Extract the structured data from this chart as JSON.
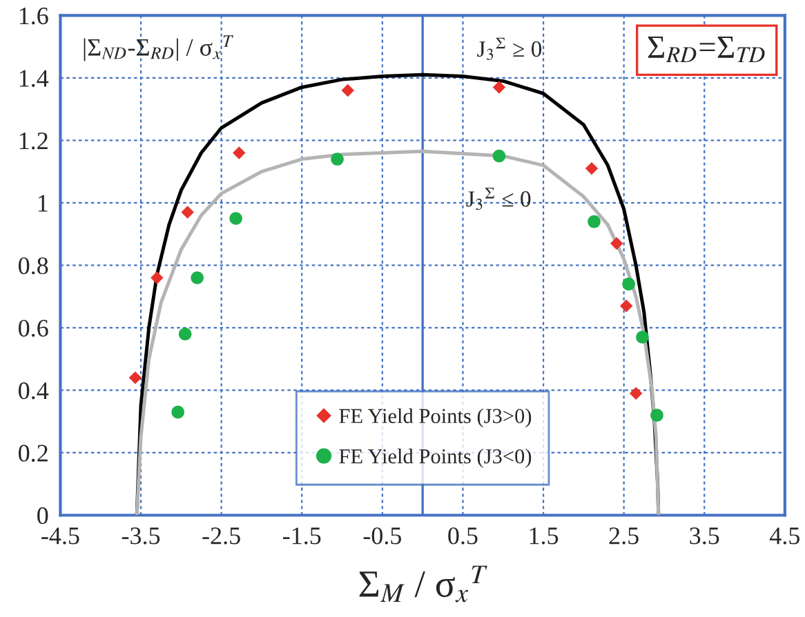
{
  "chart_data": {
    "type": "scatter",
    "xlabel": "Σ$_{M}$ / σ$_{x}$$^{T}$",
    "ylabel": "|Σ$_{ND}$-Σ$_{RD}$| / σ$_{x}$$^{T}$",
    "xlim": [
      -4.5,
      4.5
    ],
    "xticks": [
      -4.5,
      -3.5,
      -2.5,
      -1.5,
      -0.5,
      0.5,
      1.5,
      2.5,
      3.5,
      4.5
    ],
    "ylim": [
      0,
      1.6
    ],
    "yticks": [
      {
        "value": 0,
        "label": "0"
      },
      0.2,
      0.4,
      0.6,
      0.8,
      {
        "value": 1,
        "label": "1"
      },
      1.2,
      1.4,
      1.6
    ],
    "grid": true,
    "legend": "bottom",
    "ref_lines": [
      {
        "axis": "x",
        "value": 0,
        "label": null,
        "color": "#4472c4"
      }
    ],
    "annotations": [
      "J$_{3}$$^{Σ}$ ≥ 0",
      "J$_{3}$$^{Σ}$ ≤ 0",
      "Σ$_{RD}$=Σ$_{TD}$"
    ],
    "series": [
      {
        "type": "line",
        "color": "#000000",
        "marker": "none",
        "x": [
          -3.55,
          -3.5,
          -3.4,
          -3.3,
          -3.15,
          -3.0,
          -2.75,
          -2.5,
          -2.0,
          -1.5,
          -1.0,
          -0.5,
          0,
          0.5,
          1.0,
          1.5,
          2.0,
          2.3,
          2.5,
          2.65,
          2.75,
          2.83,
          2.88,
          2.92,
          2.93
        ],
        "values": [
          0,
          0.35,
          0.6,
          0.77,
          0.93,
          1.04,
          1.16,
          1.24,
          1.32,
          1.37,
          1.395,
          1.405,
          1.41,
          1.405,
          1.39,
          1.35,
          1.25,
          1.12,
          0.98,
          0.8,
          0.65,
          0.45,
          0.3,
          0.1,
          0
        ]
      },
      {
        "type": "line",
        "color": "#b4b4b4",
        "marker": "none",
        "x": [
          -3.55,
          -3.5,
          -3.4,
          -3.25,
          -3.0,
          -2.75,
          -2.5,
          -2.0,
          -1.5,
          -1.0,
          0,
          1.0,
          1.5,
          2.0,
          2.3,
          2.5,
          2.65,
          2.75,
          2.85,
          2.9,
          2.93
        ],
        "values": [
          0,
          0.25,
          0.5,
          0.68,
          0.85,
          0.96,
          1.03,
          1.1,
          1.14,
          1.155,
          1.165,
          1.15,
          1.12,
          1.02,
          0.93,
          0.82,
          0.7,
          0.58,
          0.4,
          0.25,
          0
        ]
      },
      {
        "name": "FE Yield Points (J3>0)",
        "color": "#e8312a",
        "marker": "diamond",
        "x": [
          -3.57,
          -3.3,
          -2.92,
          -2.28,
          -0.93,
          0.95,
          2.1,
          2.41,
          2.53,
          2.65
        ],
        "values": [
          0.44,
          0.76,
          0.97,
          1.16,
          1.36,
          1.37,
          1.11,
          0.87,
          0.67,
          0.39
        ]
      },
      {
        "name": "FE Yield Points (J3<0)",
        "color": "#1db14b",
        "marker": "circle",
        "x": [
          -3.04,
          -2.95,
          -2.8,
          -2.32,
          -1.06,
          0.95,
          2.13,
          2.56,
          2.73,
          2.91
        ],
        "values": [
          0.33,
          0.58,
          0.76,
          0.95,
          1.14,
          1.15,
          0.94,
          0.74,
          0.57,
          0.32
        ]
      }
    ]
  }
}
